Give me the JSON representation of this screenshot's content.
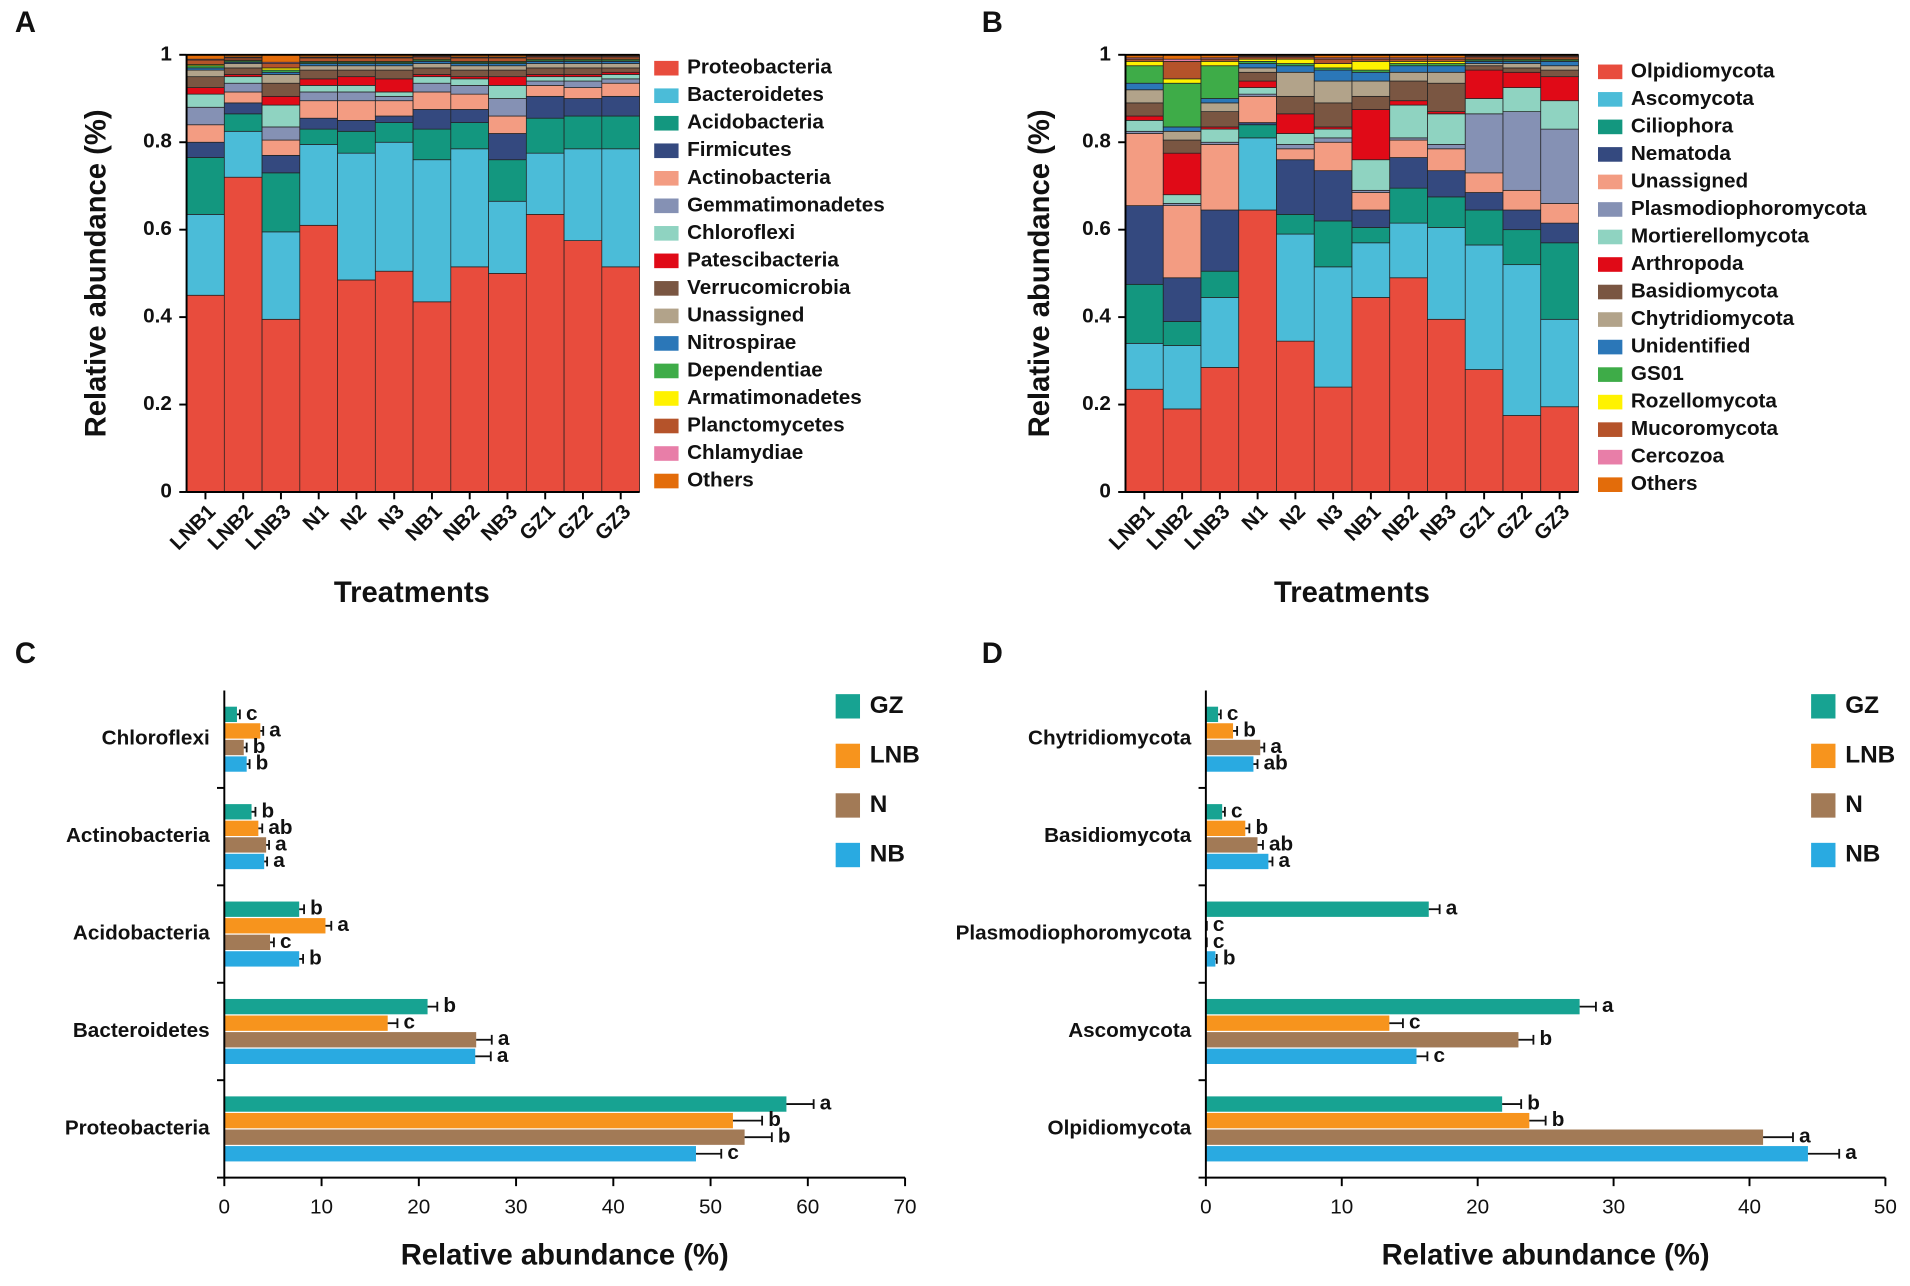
{
  "chart_data": [
    {
      "type": "stacked_bar",
      "panel": "A",
      "ylabel": "Relative abundance (%)",
      "xlabel": "Treatments",
      "categories": [
        "LNB1",
        "LNB2",
        "LNB3",
        "N1",
        "N2",
        "N3",
        "NB1",
        "NB2",
        "NB3",
        "GZ1",
        "GZ2",
        "GZ3"
      ],
      "ylim": [
        0,
        1
      ],
      "yticks": [
        0,
        0.2,
        0.4,
        0.6,
        0.8,
        1
      ],
      "series": [
        {
          "name": "Proteobacteria",
          "color": "#e84c3d",
          "values": [
            0.45,
            0.72,
            0.395,
            0.61,
            0.485,
            0.505,
            0.435,
            0.515,
            0.5,
            0.635,
            0.575,
            0.515
          ]
        },
        {
          "name": "Bacteroidetes",
          "color": "#4bbcd8",
          "values": [
            0.185,
            0.105,
            0.2,
            0.185,
            0.29,
            0.295,
            0.325,
            0.27,
            0.165,
            0.14,
            0.21,
            0.27
          ]
        },
        {
          "name": "Acidobacteria",
          "color": "#13977f",
          "values": [
            0.13,
            0.04,
            0.135,
            0.035,
            0.05,
            0.045,
            0.07,
            0.06,
            0.095,
            0.08,
            0.075,
            0.075
          ]
        },
        {
          "name": "Firmicutes",
          "color": "#34497f",
          "values": [
            0.035,
            0.025,
            0.04,
            0.025,
            0.025,
            0.015,
            0.045,
            0.03,
            0.06,
            0.05,
            0.04,
            0.045
          ]
        },
        {
          "name": "Actinobacteria",
          "color": "#f39c82",
          "values": [
            0.04,
            0.025,
            0.035,
            0.04,
            0.045,
            0.035,
            0.04,
            0.035,
            0.04,
            0.025,
            0.025,
            0.03
          ]
        },
        {
          "name": "Gemmatimonadetes",
          "color": "#8591b4",
          "values": [
            0.04,
            0.02,
            0.03,
            0.02,
            0.02,
            0.01,
            0.02,
            0.02,
            0.04,
            0.01,
            0.015,
            0.01
          ]
        },
        {
          "name": "Chloroflexi",
          "color": "#8fd3c1",
          "values": [
            0.03,
            0.015,
            0.05,
            0.015,
            0.015,
            0.01,
            0.015,
            0.015,
            0.03,
            0.01,
            0.01,
            0.01
          ]
        },
        {
          "name": "Patescibacteria",
          "color": "#e00a17",
          "values": [
            0.015,
            0.005,
            0.02,
            0.015,
            0.02,
            0.03,
            0.005,
            0.005,
            0.02,
            0.005,
            0.005,
            0.005
          ]
        },
        {
          "name": "Verrucomicrobia",
          "color": "#7a5642",
          "values": [
            0.025,
            0.015,
            0.03,
            0.02,
            0.015,
            0.02,
            0.015,
            0.015,
            0.015,
            0.015,
            0.015,
            0.01
          ]
        },
        {
          "name": "Unassigned",
          "color": "#b2a38a",
          "values": [
            0.015,
            0.01,
            0.02,
            0.01,
            0.01,
            0.01,
            0.01,
            0.01,
            0.01,
            0.01,
            0.01,
            0.01
          ]
        },
        {
          "name": "Nitrospirae",
          "color": "#2b77b8",
          "values": [
            0.005,
            0.003,
            0.005,
            0.005,
            0.005,
            0.005,
            0.005,
            0.005,
            0.005,
            0.005,
            0.005,
            0.005
          ]
        },
        {
          "name": "Dependentiae",
          "color": "#3eac48",
          "values": [
            0.005,
            0.003,
            0.005,
            0.003,
            0.003,
            0.003,
            0.003,
            0.003,
            0.003,
            0.003,
            0.003,
            0.003
          ]
        },
        {
          "name": "Armatimonadetes",
          "color": "#fff200",
          "values": [
            0.003,
            0.002,
            0.005,
            0.002,
            0.002,
            0.002,
            0.002,
            0.002,
            0.002,
            0.002,
            0.002,
            0.002
          ]
        },
        {
          "name": "Planctomycetes",
          "color": "#b5532a",
          "values": [
            0.01,
            0.005,
            0.01,
            0.008,
            0.008,
            0.008,
            0.005,
            0.008,
            0.008,
            0.005,
            0.005,
            0.005
          ]
        },
        {
          "name": "Chlamydiae",
          "color": "#e87ea8",
          "values": [
            0.002,
            0.002,
            0.003,
            0.002,
            0.002,
            0.002,
            0.002,
            0.002,
            0.002,
            0.002,
            0.002,
            0.002
          ]
        },
        {
          "name": "Others",
          "color": "#e36c0a",
          "values": [
            0.01,
            0.005,
            0.017,
            0.005,
            0.005,
            0.005,
            0.003,
            0.005,
            0.005,
            0.003,
            0.003,
            0.003
          ]
        }
      ]
    },
    {
      "type": "stacked_bar",
      "panel": "B",
      "ylabel": "Relative abundance (%)",
      "xlabel": "Treatments",
      "categories": [
        "LNB1",
        "LNB2",
        "LNB3",
        "N1",
        "N2",
        "N3",
        "NB1",
        "NB2",
        "NB3",
        "GZ1",
        "GZ2",
        "GZ3"
      ],
      "ylim": [
        0,
        1
      ],
      "yticks": [
        0,
        0.2,
        0.4,
        0.6,
        0.8,
        1
      ],
      "series": [
        {
          "name": "Olpidiomycota",
          "color": "#e84c3d",
          "values": [
            0.235,
            0.19,
            0.285,
            0.645,
            0.345,
            0.24,
            0.445,
            0.49,
            0.395,
            0.28,
            0.175,
            0.195
          ]
        },
        {
          "name": "Ascomycota",
          "color": "#4bbcd8",
          "values": [
            0.105,
            0.145,
            0.16,
            0.165,
            0.245,
            0.275,
            0.125,
            0.125,
            0.21,
            0.285,
            0.345,
            0.2
          ]
        },
        {
          "name": "Ciliophora",
          "color": "#13977f",
          "values": [
            0.135,
            0.055,
            0.06,
            0.03,
            0.045,
            0.105,
            0.035,
            0.08,
            0.07,
            0.08,
            0.08,
            0.175
          ]
        },
        {
          "name": "Nematoda",
          "color": "#34497f",
          "values": [
            0.18,
            0.1,
            0.14,
            0.005,
            0.125,
            0.115,
            0.04,
            0.07,
            0.06,
            0.04,
            0.045,
            0.045
          ]
        },
        {
          "name": "Unassigned",
          "color": "#f39c82",
          "values": [
            0.165,
            0.165,
            0.15,
            0.06,
            0.025,
            0.065,
            0.04,
            0.04,
            0.05,
            0.045,
            0.045,
            0.045
          ]
        },
        {
          "name": "Plasmodiophoromycota",
          "color": "#8591b4",
          "values": [
            0.005,
            0.005,
            0.005,
            0.005,
            0.01,
            0.01,
            0.005,
            0.005,
            0.01,
            0.135,
            0.18,
            0.17
          ]
        },
        {
          "name": "Mortierellomycota",
          "color": "#8fd3c1",
          "values": [
            0.025,
            0.02,
            0.03,
            0.015,
            0.025,
            0.02,
            0.07,
            0.075,
            0.07,
            0.035,
            0.055,
            0.065
          ]
        },
        {
          "name": "Arthropoda",
          "color": "#e00a17",
          "values": [
            0.01,
            0.095,
            0.005,
            0.015,
            0.045,
            0.005,
            0.115,
            0.01,
            0.005,
            0.065,
            0.035,
            0.055
          ]
        },
        {
          "name": "Basidiomycota",
          "color": "#7a5642",
          "values": [
            0.03,
            0.03,
            0.035,
            0.02,
            0.04,
            0.055,
            0.03,
            0.045,
            0.065,
            0.01,
            0.01,
            0.015
          ]
        },
        {
          "name": "Chytridiomycota",
          "color": "#b2a38a",
          "values": [
            0.03,
            0.02,
            0.02,
            0.01,
            0.055,
            0.05,
            0.035,
            0.02,
            0.025,
            0.005,
            0.01,
            0.01
          ]
        },
        {
          "name": "Unidentified",
          "color": "#2b77b8",
          "values": [
            0.015,
            0.01,
            0.01,
            0.01,
            0.015,
            0.025,
            0.02,
            0.015,
            0.015,
            0.005,
            0.005,
            0.01
          ]
        },
        {
          "name": "GS01",
          "color": "#3eac48",
          "values": [
            0.04,
            0.1,
            0.075,
            0.005,
            0.005,
            0.005,
            0.005,
            0.005,
            0.005,
            0.003,
            0.003,
            0.003
          ]
        },
        {
          "name": "Rozellomycota",
          "color": "#fff200",
          "values": [
            0.01,
            0.01,
            0.01,
            0.005,
            0.01,
            0.01,
            0.02,
            0.005,
            0.005,
            0.002,
            0.002,
            0.002
          ]
        },
        {
          "name": "Mucoromycota",
          "color": "#b5532a",
          "values": [
            0.005,
            0.04,
            0.005,
            0.005,
            0.005,
            0.01,
            0.005,
            0.005,
            0.005,
            0.005,
            0.005,
            0.005
          ]
        },
        {
          "name": "Cercozoa",
          "color": "#e87ea8",
          "values": [
            0.003,
            0.005,
            0.003,
            0.002,
            0.002,
            0.003,
            0.003,
            0.003,
            0.003,
            0.002,
            0.002,
            0.002
          ]
        },
        {
          "name": "Others",
          "color": "#e36c0a",
          "values": [
            0.007,
            0.01,
            0.007,
            0.003,
            0.003,
            0.007,
            0.007,
            0.007,
            0.007,
            0.003,
            0.003,
            0.003
          ]
        }
      ]
    },
    {
      "type": "horizontal_bar",
      "panel": "C",
      "xlabel": "Relative abundance (%)",
      "categories": [
        "Chloroflexi",
        "Actinobacteria",
        "Acidobacteria",
        "Bacteroidetes",
        "Proteobacteria"
      ],
      "xlim": [
        0,
        70
      ],
      "xticks": [
        0,
        10,
        20,
        30,
        40,
        50,
        60,
        70
      ],
      "series": [
        {
          "name": "GZ",
          "color": "#17a392",
          "values": [
            1.3,
            2.8,
            7.7,
            20.9,
            57.8
          ],
          "errors": [
            0.3,
            0.4,
            0.5,
            1.0,
            2.8
          ],
          "labels": [
            "c",
            "b",
            "b",
            "b",
            "a"
          ]
        },
        {
          "name": "LNB",
          "color": "#f7941d",
          "values": [
            3.7,
            3.5,
            10.4,
            16.8,
            52.3
          ],
          "errors": [
            0.3,
            0.4,
            0.6,
            1.0,
            3.0
          ],
          "labels": [
            "a",
            "ab",
            "a",
            "c",
            "b"
          ]
        },
        {
          "name": "N",
          "color": "#a27a56",
          "values": [
            2.0,
            4.3,
            4.7,
            25.9,
            53.5
          ],
          "errors": [
            0.3,
            0.3,
            0.4,
            1.6,
            2.8
          ],
          "labels": [
            "b",
            "a",
            "c",
            "a",
            "b"
          ]
        },
        {
          "name": "NB",
          "color": "#29aae1",
          "values": [
            2.3,
            4.1,
            7.7,
            25.8,
            48.5
          ],
          "errors": [
            0.3,
            0.3,
            0.4,
            1.6,
            2.6
          ],
          "labels": [
            "b",
            "a",
            "b",
            "a",
            "c"
          ]
        }
      ]
    },
    {
      "type": "horizontal_bar",
      "panel": "D",
      "xlabel": "Relative abundance (%)",
      "categories": [
        "Chytridiomycota",
        "Basidiomycota",
        "Plasmodiophoromycota",
        "Ascomycota",
        "Olpidiomycota"
      ],
      "xlim": [
        0,
        50
      ],
      "xticks": [
        0,
        10,
        20,
        30,
        40,
        50
      ],
      "series": [
        {
          "name": "GZ",
          "color": "#17a392",
          "values": [
            0.9,
            1.2,
            16.4,
            27.5,
            21.8
          ],
          "errors": [
            0.2,
            0.2,
            0.8,
            1.2,
            1.4
          ],
          "labels": [
            "c",
            "c",
            "a",
            "a",
            "b"
          ]
        },
        {
          "name": "LNB",
          "color": "#f7941d",
          "values": [
            2.0,
            2.9,
            0.05,
            13.5,
            23.8
          ],
          "errors": [
            0.3,
            0.3,
            0.02,
            1.0,
            1.2
          ],
          "labels": [
            "b",
            "b",
            "c",
            "c",
            "b"
          ]
        },
        {
          "name": "N",
          "color": "#a27a56",
          "values": [
            4.0,
            3.8,
            0.05,
            23,
            41
          ],
          "errors": [
            0.3,
            0.4,
            0.02,
            1.1,
            2.2
          ],
          "labels": [
            "a",
            "ab",
            "c",
            "b",
            "a"
          ]
        },
        {
          "name": "NB",
          "color": "#29aae1",
          "values": [
            3.5,
            4.6,
            0.7,
            15.5,
            44.3
          ],
          "errors": [
            0.3,
            0.3,
            0.1,
            0.8,
            2.3
          ],
          "labels": [
            "ab",
            "a",
            "b",
            "c",
            "a"
          ]
        }
      ]
    }
  ]
}
